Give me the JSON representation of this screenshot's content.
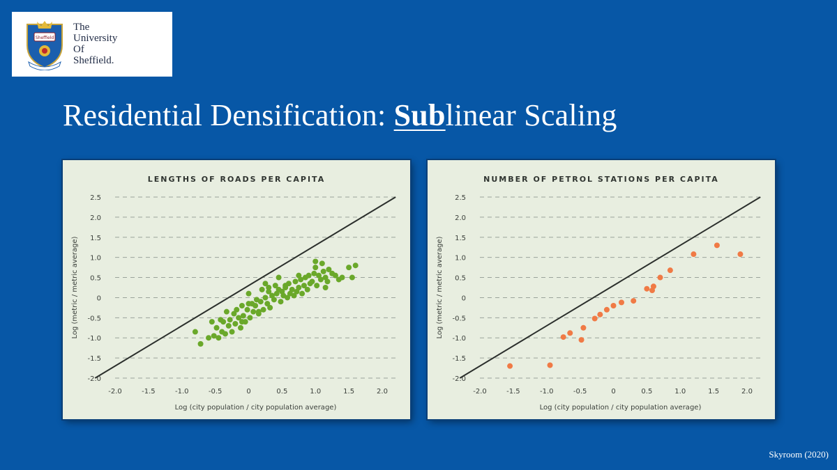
{
  "logo": {
    "lines": [
      "The",
      "University",
      "Of",
      "Sheffield."
    ],
    "crest_text": "Sheffield"
  },
  "slide": {
    "title_pre": "Residential Densification: ",
    "title_em": "Sub",
    "title_post": "linear Scaling",
    "credit": "Skyroom (2020)"
  },
  "colors": {
    "background": "#0757a6",
    "panel": "#e8eee0",
    "green": "#6aa82a",
    "orange": "#f07a45",
    "line": "#2b2f2c"
  },
  "chart_data": [
    {
      "type": "scatter",
      "title": "LENGTHS OF ROADS PER CAPITA",
      "xlabel": "Log (city population / city population average)",
      "ylabel": "Log (metric / metric average)",
      "xlim": [
        -2.0,
        2.0
      ],
      "ylim": [
        -2.0,
        2.5
      ],
      "xticks": [
        "-2.0",
        "-1.5",
        "-1.0",
        "-0.5",
        "0",
        "0.5",
        "1.0",
        "1.5",
        "2.0"
      ],
      "yticks": [
        "2.5",
        "2.0",
        "1.5",
        "1.0",
        "0.5",
        "0",
        "-0.5",
        "-1.0",
        "-1.5",
        "-2.0"
      ],
      "reference_line": [
        [
          -2.3,
          -2.0
        ],
        [
          2.2,
          2.5
        ]
      ],
      "color": "#6aa82a",
      "x": [
        -0.8,
        -0.72,
        -0.6,
        -0.55,
        -0.52,
        -0.48,
        -0.45,
        -0.42,
        -0.4,
        -0.38,
        -0.35,
        -0.33,
        -0.3,
        -0.28,
        -0.25,
        -0.22,
        -0.2,
        -0.18,
        -0.15,
        -0.12,
        -0.1,
        -0.08,
        -0.05,
        -0.02,
        0.0,
        0.02,
        0.05,
        0.07,
        0.1,
        0.12,
        0.15,
        0.18,
        0.2,
        0.22,
        0.25,
        0.28,
        0.3,
        0.32,
        0.35,
        0.38,
        0.4,
        0.42,
        0.45,
        0.48,
        0.5,
        0.52,
        0.55,
        0.58,
        0.6,
        0.62,
        0.65,
        0.68,
        0.7,
        0.72,
        0.75,
        0.78,
        0.8,
        0.83,
        0.85,
        0.88,
        0.9,
        0.92,
        0.95,
        0.98,
        1.0,
        1.02,
        1.05,
        1.08,
        1.1,
        1.12,
        1.15,
        1.18,
        1.2,
        1.25,
        1.3,
        1.35,
        1.4,
        1.5,
        1.55,
        1.6,
        0.3,
        0.15,
        -0.1,
        0.0,
        0.25,
        0.55,
        0.75,
        1.0,
        1.15,
        0.45
      ],
      "y": [
        -0.85,
        -1.15,
        -1.0,
        -0.6,
        -0.95,
        -0.75,
        -1.0,
        -0.55,
        -0.85,
        -0.6,
        -0.9,
        -0.35,
        -0.7,
        -0.55,
        -0.85,
        -0.4,
        -0.65,
        -0.3,
        -0.5,
        -0.75,
        -0.2,
        -0.45,
        -0.6,
        -0.3,
        0.1,
        -0.5,
        -0.15,
        -0.35,
        -0.2,
        -0.05,
        -0.4,
        -0.1,
        0.2,
        -0.3,
        0.0,
        -0.15,
        0.15,
        -0.25,
        0.05,
        -0.05,
        0.3,
        0.1,
        0.2,
        -0.1,
        0.15,
        0.05,
        0.25,
        0.0,
        0.35,
        0.1,
        0.2,
        0.05,
        0.4,
        0.15,
        0.25,
        0.45,
        0.1,
        0.3,
        0.5,
        0.2,
        0.55,
        0.35,
        0.4,
        0.6,
        0.75,
        0.3,
        0.55,
        0.45,
        0.85,
        0.65,
        0.5,
        0.4,
        0.7,
        0.6,
        0.55,
        0.45,
        0.5,
        0.75,
        0.5,
        0.8,
        0.25,
        -0.35,
        -0.6,
        -0.15,
        0.35,
        0.3,
        0.55,
        0.9,
        0.25,
        0.5
      ]
    },
    {
      "type": "scatter",
      "title": "NUMBER OF PETROL STATIONS PER CAPITA",
      "xlabel": "Log (city population / city population average)",
      "ylabel": "Log (metric / metric average)",
      "xlim": [
        -2.0,
        2.0
      ],
      "ylim": [
        -2.0,
        2.5
      ],
      "xticks": [
        "-2.0",
        "-1.5",
        "-1.0",
        "-0.5",
        "0",
        "0.5",
        "1.0",
        "1.5",
        "2.0"
      ],
      "yticks": [
        "2.5",
        "2.0",
        "1.5",
        "1.0",
        "0.5",
        "0",
        "-0.5",
        "-1.0",
        "-1.5",
        "-2.0"
      ],
      "reference_line": [
        [
          -2.3,
          -2.0
        ],
        [
          2.2,
          2.5
        ]
      ],
      "color": "#f07a45",
      "x": [
        -1.55,
        -0.95,
        -0.75,
        -0.65,
        -0.48,
        -0.45,
        -0.28,
        -0.2,
        -0.1,
        0.0,
        0.12,
        0.3,
        0.5,
        0.6,
        0.58,
        0.7,
        0.85,
        1.2,
        1.55,
        1.9
      ],
      "y": [
        -1.7,
        -1.68,
        -0.98,
        -0.88,
        -1.05,
        -0.75,
        -0.52,
        -0.42,
        -0.3,
        -0.2,
        -0.12,
        -0.08,
        0.22,
        0.28,
        0.18,
        0.5,
        0.68,
        1.08,
        1.3,
        1.08
      ]
    }
  ]
}
